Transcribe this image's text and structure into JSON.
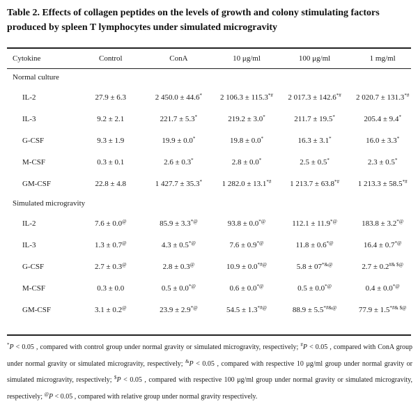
{
  "title": "Table 2.  Effects of collagen peptides on the levels of growth and colony stimulating factors produced by spleen T lymphocytes under simulated microgravity",
  "columns": [
    "Cytokine",
    "Control",
    "ConA",
    "10 μg/ml",
    "100 μg/ml",
    "1 mg/ml"
  ],
  "sections": [
    {
      "label": "Normal culture",
      "rows": [
        {
          "name": "IL-2",
          "cells": [
            [
              "27.9 ± 6.3",
              ""
            ],
            [
              "2 450.0 ± 44.6",
              "*"
            ],
            [
              "2 106.3 ± 115.3",
              "*#"
            ],
            [
              "2 017.3 ± 142.6",
              "*#"
            ],
            [
              "2 020.7 ± 131.3",
              "*#"
            ]
          ]
        },
        {
          "name": "IL-3",
          "cells": [
            [
              "9.2 ± 2.1",
              ""
            ],
            [
              "221.7 ± 5.3",
              "*"
            ],
            [
              "219.2 ± 3.0",
              "*"
            ],
            [
              "211.7 ± 19.5",
              "*"
            ],
            [
              "205.4 ± 9.4",
              "*"
            ]
          ]
        },
        {
          "name": "G-CSF",
          "cells": [
            [
              "9.3 ± 1.9",
              ""
            ],
            [
              "19.9 ± 0.0",
              "*"
            ],
            [
              "19.8 ± 0.0",
              "*"
            ],
            [
              "16.3 ± 3.1",
              "*"
            ],
            [
              "16.0 ± 3.3",
              "*"
            ]
          ]
        },
        {
          "name": "M-CSF",
          "cells": [
            [
              "0.3 ± 0.1",
              ""
            ],
            [
              "2.6 ± 0.3",
              "*"
            ],
            [
              "2.8 ± 0.0",
              "*"
            ],
            [
              "2.5 ± 0.5",
              "*"
            ],
            [
              "2.3 ± 0.5",
              "*"
            ]
          ]
        },
        {
          "name": "GM-CSF",
          "cells": [
            [
              "22.8 ± 4.8",
              ""
            ],
            [
              "1 427.7 ± 35.3",
              "*"
            ],
            [
              "1 282.0 ± 13.1",
              "*#"
            ],
            [
              "1 213.7 ± 63.8",
              "*#"
            ],
            [
              "1 213.3 ± 58.5",
              "*#"
            ]
          ]
        }
      ]
    },
    {
      "label": "Simulated microgravity",
      "rows": [
        {
          "name": "IL-2",
          "cells": [
            [
              "7.6 ± 0.0",
              "@"
            ],
            [
              "85.9 ± 3.3",
              "*@"
            ],
            [
              "93.8 ± 0.0",
              "*@"
            ],
            [
              "112.1 ± 11.9",
              "*@"
            ],
            [
              "183.8 ± 3.2",
              "*@"
            ]
          ]
        },
        {
          "name": "IL-3",
          "cells": [
            [
              "1.3 ± 0.7",
              "@"
            ],
            [
              "4.3 ± 0.5",
              "*@"
            ],
            [
              "7.6 ± 0.9",
              "*@"
            ],
            [
              "11.8 ± 0.6",
              "*@"
            ],
            [
              "16.4 ± 0.7",
              "*@"
            ]
          ]
        },
        {
          "name": "G-CSF",
          "cells": [
            [
              "2.7 ± 0.3",
              "@"
            ],
            [
              "2.8 ± 0.3",
              "@"
            ],
            [
              "10.9 ± 0.0",
              "*#@"
            ],
            [
              "5.8 ± 07",
              "*&@"
            ],
            [
              "2.7 ± 0.2",
              "#& $@"
            ]
          ]
        },
        {
          "name": "M-CSF",
          "cells": [
            [
              "0.3 ± 0.0",
              ""
            ],
            [
              "0.5 ± 0.0",
              "*@"
            ],
            [
              "0.6 ± 0.0",
              "*@"
            ],
            [
              "0.5 ± 0.0",
              "*@"
            ],
            [
              "0.4 ± 0.0",
              "*@"
            ]
          ]
        },
        {
          "name": "GM-CSF",
          "cells": [
            [
              "3.1 ± 0.2",
              "@"
            ],
            [
              "23.9 ± 2.9",
              "*@"
            ],
            [
              "54.5 ± 1.3",
              "*#@"
            ],
            [
              "88.9 ± 5.5",
              "*#&@"
            ],
            [
              "77.9 ± 1.5",
              "*#& $@"
            ]
          ]
        }
      ]
    }
  ],
  "footnote": [
    {
      "sym": "*",
      "text": " < 0.05 , compared with control group under normal gravity or simulated microgravity, respectively; "
    },
    {
      "sym": "#",
      "text": " < 0.05 , compared with ConA group under normal gravity or simulated microgravity, respectively; "
    },
    {
      "sym": "&",
      "text": " < 0.05 , compared with respective 10 μg/ml group under normal gravity or simulated microgravity, respectively; "
    },
    {
      "sym": "$",
      "text": " < 0.05 , compared with respective 100 μg/ml group under normal gravity or simulated microgravity, respectively; "
    },
    {
      "sym": "@",
      "text": " < 0.05 , compared with relative group under normal gravity respectively."
    }
  ],
  "footnote_p": "P"
}
